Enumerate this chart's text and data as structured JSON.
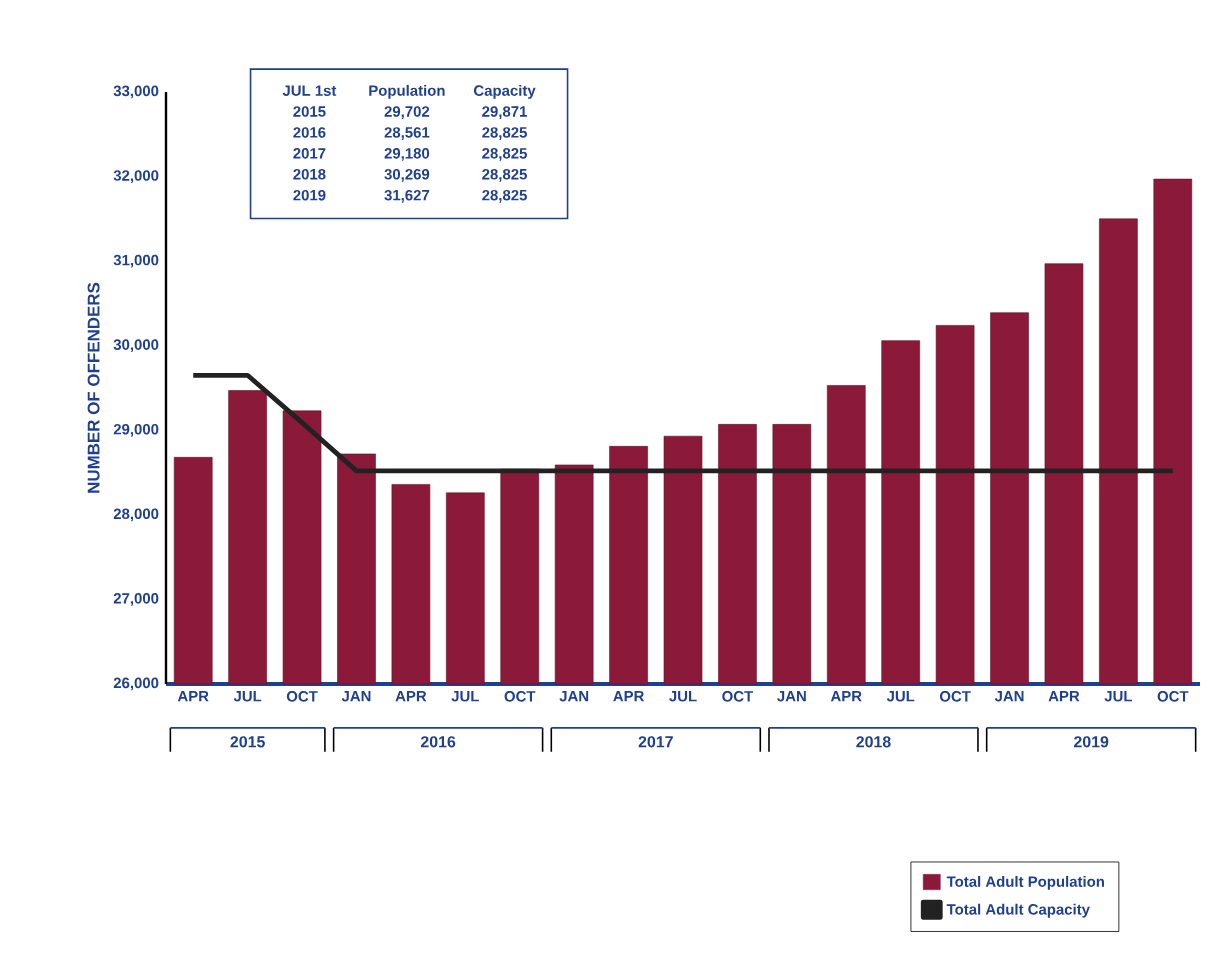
{
  "chart_data": {
    "type": "bar",
    "categories": [
      "APR",
      "JUL",
      "OCT",
      "JAN",
      "APR",
      "JUL",
      "OCT",
      "JAN",
      "APR",
      "JUL",
      "OCT",
      "JAN",
      "APR",
      "JUL",
      "OCT",
      "JAN",
      "APR",
      "JUL",
      "OCT"
    ],
    "ylabel": "NUMBER OF OFFENDERS",
    "series": [
      {
        "name": "Total Adult Population",
        "color": "#8b1a3a",
        "values": [
          28680,
          29470,
          29230,
          28720,
          28360,
          28260,
          28540,
          28590,
          28810,
          28930,
          29070,
          29070,
          29530,
          30060,
          30240,
          30390,
          30970,
          31500,
          31970
        ]
      },
      {
        "name": "Total Adult Capacity",
        "type": "line",
        "color": "#222222",
        "values": [
          29650,
          29650,
          29090,
          28520,
          28520,
          28520,
          28520,
          28520,
          28520,
          28520,
          28520,
          28520,
          28520,
          28520,
          28520,
          28520,
          28520,
          28520,
          28520
        ]
      }
    ],
    "ylim": [
      26000,
      33000
    ],
    "yticks": [
      {
        "value": 26000,
        "label": "26,000"
      },
      {
        "value": 27000,
        "label": "27,000"
      },
      {
        "value": 28000,
        "label": "28,000"
      },
      {
        "value": 29000,
        "label": "29,000"
      },
      {
        "value": 30000,
        "label": "30,000"
      },
      {
        "value": 31000,
        "label": "31,000"
      },
      {
        "value": 32000,
        "label": "32,000"
      },
      {
        "value": 33000,
        "label": "33,000"
      }
    ],
    "legend": "bottom right",
    "annotations": [
      "JUL 1st",
      "Population",
      "Capacity",
      "2015",
      "29,702",
      "29,871",
      "2016",
      "28,561",
      "28,825",
      "2017",
      "29,180",
      "28,825",
      "2018",
      "30,269",
      "28,825",
      "2019",
      "31,627",
      "28,825",
      "2015",
      "2016",
      "2017",
      "2018",
      "2019"
    ]
  }
}
